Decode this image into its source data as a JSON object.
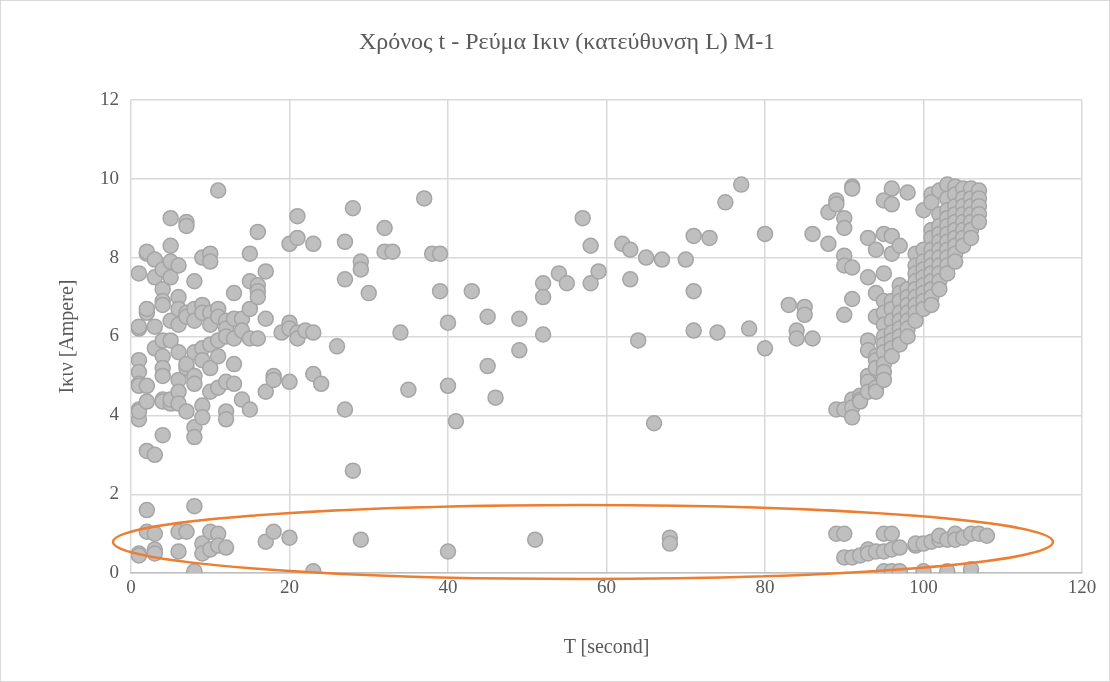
{
  "chart_data": {
    "type": "scatter",
    "title": "Χρόνος t - Ρεύμα Ικιν (κατεύθυνση L) M-1",
    "xlabel": "T [second]",
    "ylabel": "Ικιν [Ampere]",
    "xlim": [
      0,
      120
    ],
    "xticks": [
      0,
      20,
      40,
      60,
      80,
      100,
      120
    ],
    "ylim": [
      0,
      12
    ],
    "yticks": [
      0,
      2,
      4,
      6,
      8,
      10,
      12
    ],
    "grid": true,
    "marker": "circle",
    "legend": false,
    "series": [
      {
        "color": "#a5a5a5",
        "x": [
          1,
          1,
          1,
          1,
          1,
          1,
          1,
          1,
          1,
          1,
          1,
          1,
          2,
          2,
          2,
          2,
          2,
          2,
          2,
          2,
          2,
          3,
          3,
          3,
          3,
          3,
          3,
          3,
          3,
          4,
          4,
          4,
          4,
          4,
          4,
          4,
          4,
          4,
          4,
          4,
          5,
          5,
          5,
          5,
          5,
          5,
          5,
          5,
          6,
          6,
          6,
          6,
          6,
          6,
          6,
          6,
          6,
          6,
          7,
          7,
          7,
          7,
          7,
          7,
          7,
          7,
          8,
          8,
          8,
          8,
          8,
          8,
          8,
          8,
          8,
          8,
          9,
          9,
          9,
          9,
          9,
          9,
          9,
          9,
          9,
          10,
          10,
          10,
          10,
          10,
          10,
          10,
          10,
          10,
          11,
          11,
          11,
          11,
          11,
          11,
          11,
          11,
          12,
          12,
          12,
          12,
          12,
          12,
          12,
          13,
          13,
          13,
          13,
          13,
          14,
          14,
          14,
          15,
          15,
          15,
          15,
          15,
          16,
          16,
          16,
          16,
          16,
          17,
          17,
          17,
          17,
          18,
          18,
          18,
          19,
          20,
          20,
          20,
          20,
          20,
          21,
          21,
          21,
          21,
          22,
          23,
          23,
          23,
          23,
          24,
          26,
          27,
          27,
          27,
          28,
          28,
          29,
          29,
          29,
          30,
          32,
          32,
          33,
          34,
          35,
          37,
          38,
          39,
          39,
          40,
          40,
          40,
          41,
          43,
          45,
          45,
          46,
          49,
          49,
          51,
          52,
          52,
          52,
          54,
          55,
          57,
          58,
          58,
          59,
          62,
          63,
          63,
          64,
          65,
          66,
          67,
          68,
          68,
          70,
          71,
          71,
          71,
          73,
          74,
          75,
          77,
          78,
          80,
          80,
          83,
          84,
          84,
          85,
          85,
          86,
          86,
          88,
          88,
          89,
          89,
          89,
          89,
          90,
          90,
          90,
          90,
          90,
          90,
          90,
          90,
          91,
          91,
          91,
          91,
          91,
          91,
          91,
          91,
          92,
          92,
          92,
          92,
          93,
          93,
          93,
          93,
          93,
          93,
          93,
          93,
          93,
          94,
          94,
          94,
          94,
          94,
          94,
          94,
          94,
          94,
          95,
          95,
          95,
          95,
          95,
          95,
          95,
          95,
          95,
          95,
          95,
          95,
          95,
          95,
          95,
          96,
          96,
          96,
          96,
          96,
          96,
          96,
          96,
          96,
          96,
          96,
          96,
          96,
          96,
          97,
          97,
          97,
          97,
          97,
          97,
          97,
          97,
          97,
          97,
          97,
          98,
          98,
          98,
          98,
          98,
          98,
          98,
          98,
          99,
          99,
          99,
          99,
          99,
          99,
          99,
          99,
          99,
          99,
          99,
          100,
          100,
          100,
          100,
          100,
          100,
          100,
          100,
          100,
          100,
          100,
          101,
          101,
          101,
          101,
          101,
          101,
          101,
          101,
          101,
          101,
          101,
          101,
          101,
          102,
          102,
          102,
          102,
          102,
          102,
          102,
          102,
          102,
          102,
          102,
          102,
          102,
          103,
          103,
          103,
          103,
          103,
          103,
          103,
          103,
          103,
          103,
          103,
          103,
          103,
          104,
          104,
          104,
          104,
          104,
          104,
          104,
          104,
          104,
          104,
          104,
          104,
          105,
          105,
          105,
          105,
          105,
          105,
          105,
          105,
          105,
          106,
          106,
          106,
          106,
          106,
          106,
          106,
          106,
          106,
          107,
          107,
          107,
          107,
          107,
          107,
          108
        ],
        "values": [
          7.6,
          6.2,
          6.25,
          5.4,
          5.1,
          4.8,
          4.75,
          4.15,
          3.9,
          4.1,
          0.5,
          0.45,
          8.1,
          8.15,
          6.6,
          6.7,
          4.75,
          4.35,
          3.1,
          1.6,
          1.05,
          7.95,
          7.5,
          6.25,
          5.7,
          3.0,
          1.0,
          0.6,
          0.5,
          7.7,
          7.2,
          6.9,
          6.8,
          5.9,
          5.5,
          5.2,
          5.0,
          4.4,
          4.35,
          3.5,
          9.0,
          8.3,
          7.9,
          7.5,
          6.4,
          5.9,
          4.3,
          4.4,
          7.8,
          7.0,
          6.7,
          6.3,
          5.6,
          4.9,
          4.6,
          4.3,
          1.05,
          0.55,
          8.9,
          8.8,
          6.6,
          6.5,
          5.2,
          5.3,
          4.1,
          1.05,
          7.4,
          6.7,
          6.4,
          5.6,
          5.0,
          4.8,
          3.7,
          3.45,
          1.7,
          0.05,
          8.0,
          6.8,
          6.6,
          5.7,
          5.4,
          4.25,
          3.95,
          0.75,
          0.5,
          8.1,
          7.9,
          6.6,
          6.3,
          5.2,
          5.8,
          4.6,
          1.05,
          0.6,
          9.7,
          6.7,
          6.5,
          5.9,
          5.5,
          4.7,
          1.0,
          0.7,
          6.4,
          6.2,
          6.0,
          4.85,
          4.1,
          3.9,
          0.65,
          7.1,
          6.45,
          5.95,
          5.3,
          4.8,
          6.45,
          6.15,
          4.4,
          8.1,
          7.4,
          6.7,
          5.95,
          4.15,
          8.65,
          7.3,
          7.15,
          7.0,
          5.95,
          7.65,
          6.45,
          4.6,
          0.8,
          5.0,
          4.9,
          1.05,
          6.1,
          8.35,
          6.35,
          6.2,
          4.85,
          0.9,
          9.05,
          8.5,
          6.1,
          5.95,
          6.15,
          8.35,
          6.1,
          5.05,
          0.05,
          4.8,
          5.75,
          8.4,
          7.45,
          4.15,
          9.25,
          2.6,
          7.9,
          7.7,
          0.85,
          7.1,
          8.75,
          8.15,
          8.15,
          6.1,
          4.65,
          9.5,
          8.1,
          8.1,
          7.15,
          6.35,
          4.75,
          0.55,
          3.85,
          7.15,
          6.5,
          5.25,
          4.45,
          6.45,
          5.65,
          0.85,
          7.35,
          7.0,
          6.05,
          7.6,
          7.35,
          9.0,
          8.3,
          7.35,
          7.65,
          8.35,
          8.2,
          7.45,
          5.9,
          8.0,
          3.8,
          7.95,
          0.9,
          0.75,
          7.95,
          8.55,
          7.15,
          6.15,
          8.5,
          6.1,
          9.4,
          9.85,
          6.2,
          8.6,
          5.7,
          6.8,
          6.15,
          5.95,
          6.75,
          6.55,
          8.6,
          5.95,
          9.15,
          8.35,
          9.45,
          9.35,
          4.15,
          1.0,
          9.0,
          8.75,
          8.05,
          7.8,
          6.55,
          4.15,
          1.0,
          0.4,
          9.8,
          9.75,
          7.75,
          6.95,
          4.4,
          4.2,
          3.95,
          0.4,
          4.5,
          4.4,
          4.35,
          0.45,
          8.5,
          7.5,
          5.9,
          5.65,
          5.0,
          4.85,
          4.6,
          0.6,
          0.5,
          8.2,
          7.1,
          6.5,
          5.5,
          5.4,
          5.2,
          4.7,
          4.6,
          0.55,
          9.45,
          8.6,
          7.6,
          6.9,
          6.6,
          6.3,
          6.0,
          5.8,
          5.6,
          5.3,
          5.1,
          4.9,
          1.0,
          0.55,
          0.05,
          9.75,
          9.35,
          8.55,
          8.1,
          6.9,
          6.7,
          6.4,
          6.1,
          5.9,
          5.7,
          5.5,
          1.0,
          0.6,
          0.05,
          8.3,
          7.3,
          7.1,
          6.9,
          6.6,
          6.4,
          6.2,
          6.0,
          5.8,
          0.65,
          0.05,
          9.65,
          7.2,
          7.0,
          6.8,
          6.6,
          6.4,
          6.2,
          6.0,
          8.1,
          7.8,
          7.6,
          7.4,
          7.2,
          7.0,
          6.8,
          6.6,
          6.4,
          0.7,
          0.75,
          9.2,
          8.2,
          7.9,
          7.7,
          7.5,
          7.3,
          7.1,
          6.9,
          6.7,
          0.75,
          0.05,
          9.6,
          9.4,
          8.7,
          8.5,
          8.2,
          8.0,
          7.8,
          7.6,
          7.4,
          7.2,
          7.0,
          6.8,
          0.8,
          9.7,
          9.1,
          8.8,
          8.6,
          8.4,
          8.2,
          8.0,
          7.8,
          7.6,
          7.4,
          7.2,
          0.85,
          0.95,
          9.85,
          9.5,
          9.2,
          9.0,
          8.8,
          8.6,
          8.4,
          8.2,
          8.0,
          7.8,
          7.6,
          0.85,
          0.05,
          9.8,
          9.6,
          9.3,
          9.1,
          8.9,
          8.7,
          8.5,
          8.3,
          8.1,
          7.9,
          1.0,
          0.85,
          9.75,
          9.5,
          9.3,
          9.1,
          8.9,
          8.7,
          8.5,
          8.3,
          0.9,
          9.75,
          9.5,
          9.3,
          9.1,
          8.9,
          8.7,
          8.5,
          1.0,
          0.1,
          9.7,
          9.5,
          9.3,
          9.1,
          8.9,
          1.0,
          0.95
        ]
      }
    ]
  }
}
